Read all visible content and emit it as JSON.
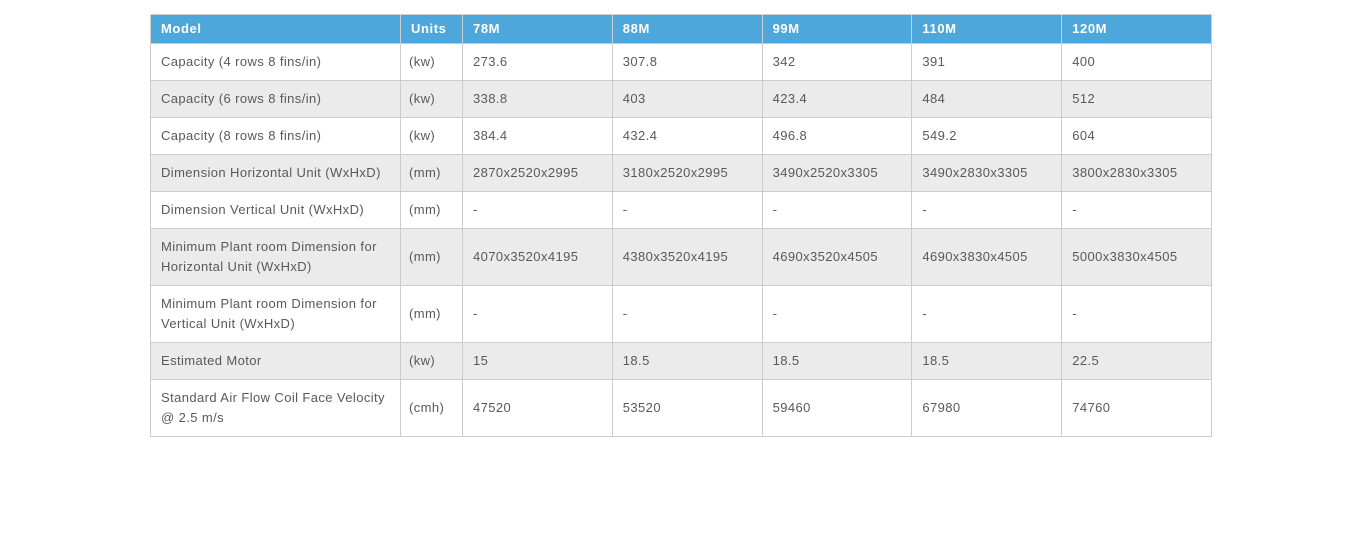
{
  "colors": {
    "header_bg": "#4da7db",
    "header_text": "#ffffff",
    "body_text": "#58595b",
    "stripe_bg": "#ebebeb",
    "row_bg": "#ffffff",
    "border": "#cccccc"
  },
  "chart_data": {
    "type": "table",
    "columns": [
      "Model",
      "Units",
      "78M",
      "88M",
      "99M",
      "110M",
      "120M"
    ],
    "rows": [
      [
        "Capacity (4 rows 8 fins/in)",
        "(kw)",
        "273.6",
        "307.8",
        "342",
        "391",
        "400"
      ],
      [
        "Capacity (6 rows 8 fins/in)",
        "(kw)",
        "338.8",
        "403",
        "423.4",
        "484",
        "512"
      ],
      [
        "Capacity (8 rows 8 fins/in)",
        "(kw)",
        "384.4",
        "432.4",
        "496.8",
        "549.2",
        "604"
      ],
      [
        "Dimension Horizontal Unit (WxHxD)",
        "(mm)",
        "2870x2520x2995",
        "3180x2520x2995",
        "3490x2520x3305",
        "3490x2830x3305",
        "3800x2830x3305"
      ],
      [
        "Dimension Vertical Unit (WxHxD)",
        "(mm)",
        "-",
        "-",
        "-",
        "-",
        "-"
      ],
      [
        "Minimum Plant room Dimension for Horizontal Unit (WxHxD)",
        "(mm)",
        "4070x3520x4195",
        "4380x3520x4195",
        "4690x3520x4505",
        "4690x3830x4505",
        "5000x3830x4505"
      ],
      [
        "Minimum Plant room Dimension for Vertical Unit (WxHxD)",
        "(mm)",
        "-",
        "-",
        "-",
        "-",
        "-"
      ],
      [
        "Estimated Motor",
        "(kw)",
        "15",
        "18.5",
        "18.5",
        "18.5",
        "22.5"
      ],
      [
        "Standard Air Flow Coil Face Velocity @ 2.5 m/s",
        "(cmh)",
        "47520",
        "53520",
        "59460",
        "67980",
        "74760"
      ]
    ],
    "layout": {
      "header_position": "top",
      "striped": true,
      "grid": true
    }
  }
}
